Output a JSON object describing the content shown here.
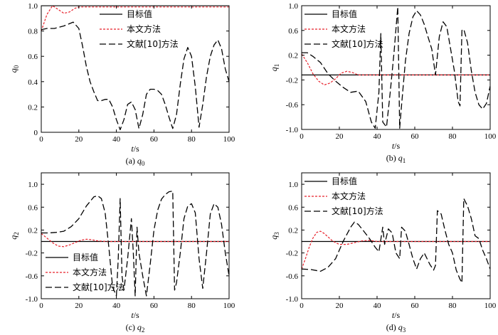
{
  "chart_data": [
    {
      "id": "q0",
      "type": "line",
      "caption_prefix": "(a) ",
      "caption_var": "q",
      "caption_sub": "0",
      "ylabel_var": "q",
      "ylabel_sub": "0",
      "xlabel_var": "t",
      "xlabel_unit": "/s",
      "xlim": [
        0,
        100
      ],
      "ylim": [
        0,
        1.0
      ],
      "xticks": [
        0,
        20,
        40,
        60,
        80,
        100
      ],
      "yticks": [
        0,
        0.2,
        0.4,
        0.6,
        0.8,
        1.0
      ],
      "ytick_labels": [
        "0",
        "0.2",
        "0.4",
        "0.6",
        "0.8",
        "1.0"
      ],
      "legend_position": "top-right",
      "legend_labels": [
        "目标值",
        "本文方法",
        "文献[10]方法"
      ],
      "series": [
        {
          "name": "目标值",
          "style": "solid",
          "color": "#000000",
          "x": [
            0,
            100
          ],
          "y": [
            1.0,
            1.0
          ]
        },
        {
          "name": "本文方法",
          "style": "dotted",
          "color": "#e8202a",
          "x": [
            0,
            3,
            6,
            9,
            12,
            15,
            18,
            20,
            25,
            30,
            100
          ],
          "y": [
            0.8,
            0.93,
            1.0,
            0.97,
            0.94,
            0.95,
            0.98,
            0.99,
            0.99,
            0.99,
            0.99
          ]
        },
        {
          "name": "文献[10]方法",
          "style": "dashed",
          "color": "#000000",
          "x": [
            0,
            3,
            7,
            12,
            17,
            20,
            22,
            24,
            26,
            28,
            30,
            32,
            34,
            36,
            38,
            40,
            42,
            44,
            46,
            48,
            50,
            52,
            54,
            56,
            58,
            60,
            62,
            64,
            66,
            68,
            70,
            72,
            74,
            76,
            78,
            80,
            82,
            84,
            86,
            88,
            90,
            92,
            94,
            96,
            98,
            100
          ],
          "y": [
            0.81,
            0.82,
            0.82,
            0.84,
            0.87,
            0.82,
            0.68,
            0.52,
            0.4,
            0.32,
            0.25,
            0.25,
            0.26,
            0.26,
            0.2,
            0.1,
            0.02,
            0.1,
            0.22,
            0.24,
            0.18,
            0.03,
            0.14,
            0.3,
            0.34,
            0.34,
            0.33,
            0.3,
            0.22,
            0.12,
            0.03,
            0.14,
            0.38,
            0.58,
            0.67,
            0.6,
            0.36,
            0.04,
            0.22,
            0.44,
            0.6,
            0.69,
            0.73,
            0.66,
            0.5,
            0.4
          ]
        }
      ]
    },
    {
      "id": "q1",
      "type": "line",
      "caption_prefix": "(b) ",
      "caption_var": "q",
      "caption_sub": "1",
      "ylabel_var": "q",
      "ylabel_sub": "1",
      "xlabel_var": "t",
      "xlabel_unit": "/s",
      "xlim": [
        0,
        100
      ],
      "ylim": [
        -1.0,
        1.0
      ],
      "xticks": [
        0,
        20,
        40,
        60,
        80,
        100
      ],
      "yticks": [
        -1.0,
        -0.6,
        -0.2,
        0.2,
        0.6,
        1.0
      ],
      "ytick_labels": [
        "-1.0",
        "-0.6",
        "-0.2",
        "0.2",
        "0.6",
        "1.0"
      ],
      "legend_position": "top-left",
      "legend_labels": [
        "目标值",
        "本文方法",
        "文献[10]方法"
      ],
      "series": [
        {
          "name": "目标值",
          "style": "solid",
          "color": "#000000",
          "x": [
            0,
            100
          ],
          "y": [
            -0.12,
            -0.12
          ]
        },
        {
          "name": "本文方法",
          "style": "dotted",
          "color": "#e8202a",
          "x": [
            0,
            3,
            6,
            9,
            12,
            15,
            18,
            21,
            24,
            27,
            30,
            35,
            40,
            100
          ],
          "y": [
            0.22,
            0.08,
            -0.1,
            -0.22,
            -0.28,
            -0.25,
            -0.18,
            -0.09,
            -0.06,
            -0.08,
            -0.12,
            -0.12,
            -0.12,
            -0.12
          ]
        },
        {
          "name": "文献[10]方法",
          "style": "dashed",
          "color": "#000000",
          "x": [
            0,
            3,
            6,
            10,
            14,
            18,
            22,
            26,
            30,
            34,
            37,
            39,
            41,
            42,
            43,
            45,
            47,
            49,
            51,
            52,
            53,
            55,
            57,
            59,
            61,
            63,
            65,
            67,
            69,
            71,
            73,
            75,
            77,
            79,
            81,
            83,
            84,
            85,
            86,
            88,
            90,
            92,
            94,
            96,
            98,
            100
          ],
          "y": [
            0.24,
            0.24,
            0.18,
            0.08,
            -0.1,
            -0.22,
            -0.32,
            -0.4,
            -0.38,
            -0.55,
            -0.88,
            -0.98,
            -0.4,
            0.55,
            -0.88,
            -0.96,
            -0.4,
            0.25,
            0.98,
            -0.98,
            -0.6,
            0.1,
            0.55,
            0.82,
            0.92,
            0.85,
            0.7,
            0.5,
            0.3,
            -0.12,
            0.5,
            0.74,
            0.66,
            0.3,
            -0.05,
            -0.55,
            -0.62,
            0.6,
            0.62,
            0.4,
            -0.05,
            -0.4,
            -0.6,
            -0.67,
            -0.58,
            -0.3
          ]
        }
      ]
    },
    {
      "id": "q2",
      "type": "line",
      "caption_prefix": "(c) ",
      "caption_var": "q",
      "caption_sub": "2",
      "ylabel_var": "q",
      "ylabel_sub": "2",
      "xlabel_var": "t",
      "xlabel_unit": "/s",
      "xlim": [
        0,
        100
      ],
      "ylim": [
        -1.0,
        1.2
      ],
      "xticks": [
        0,
        20,
        40,
        60,
        80,
        100
      ],
      "yticks": [
        -1.0,
        -0.6,
        -0.2,
        0.2,
        0.6,
        1.0
      ],
      "ytick_labels": [
        "-1.0",
        "-0.6",
        "-0.2",
        "0.2",
        "0.6",
        "1.0"
      ],
      "legend_position": "bottom-left",
      "legend_labels": [
        "目标值",
        "本文方法",
        "文献[10]方法"
      ],
      "series": [
        {
          "name": "目标值",
          "style": "solid",
          "color": "#000000",
          "x": [
            0,
            100
          ],
          "y": [
            0.0,
            0.0
          ]
        },
        {
          "name": "本文方法",
          "style": "dotted",
          "color": "#e8202a",
          "x": [
            0,
            3,
            6,
            9,
            12,
            15,
            18,
            21,
            24,
            27,
            30,
            35,
            100
          ],
          "y": [
            0.14,
            0.06,
            -0.02,
            -0.08,
            -0.09,
            -0.06,
            -0.02,
            0.02,
            0.04,
            0.03,
            0.01,
            0.0,
            0.0
          ]
        },
        {
          "name": "文献[10]方法",
          "style": "dashed",
          "color": "#000000",
          "x": [
            0,
            4,
            8,
            12,
            16,
            20,
            24,
            28,
            30,
            32,
            34,
            36,
            38,
            40,
            41,
            42,
            43,
            44,
            46,
            48,
            49,
            50,
            51,
            52,
            54,
            56,
            58,
            60,
            62,
            64,
            66,
            68,
            70,
            71,
            72,
            74,
            76,
            78,
            80,
            82,
            84,
            86,
            88,
            90,
            92,
            94,
            96,
            98,
            100
          ],
          "y": [
            0.15,
            0.15,
            0.16,
            0.18,
            0.26,
            0.4,
            0.62,
            0.78,
            0.8,
            0.75,
            0.5,
            -0.1,
            -0.8,
            -0.95,
            -0.3,
            0.75,
            -0.6,
            -0.85,
            -0.3,
            0.4,
            -0.2,
            -0.95,
            0.25,
            -0.2,
            -0.6,
            -0.95,
            -0.4,
            0.2,
            0.55,
            0.74,
            0.82,
            0.87,
            0.88,
            -0.85,
            -0.72,
            -0.2,
            0.4,
            0.62,
            0.66,
            0.5,
            -0.3,
            -0.82,
            -0.2,
            0.48,
            0.66,
            0.6,
            0.3,
            -0.2,
            -0.6
          ]
        }
      ]
    },
    {
      "id": "q3",
      "type": "line",
      "caption_prefix": "(d) ",
      "caption_var": "q",
      "caption_sub": "3",
      "ylabel_var": "q",
      "ylabel_sub": "3",
      "xlabel_var": "t",
      "xlabel_unit": "/s",
      "xlim": [
        0,
        100
      ],
      "ylim": [
        -1.0,
        1.2
      ],
      "xticks": [
        0,
        20,
        40,
        60,
        80,
        100
      ],
      "yticks": [
        -1.0,
        -0.6,
        -0.2,
        0.2,
        0.6,
        1.0
      ],
      "ytick_labels": [
        "-1.0",
        "-0.6",
        "-0.2",
        "0.2",
        "0.6",
        "1.0"
      ],
      "legend_position": "top-left",
      "legend_labels": [
        "目标值",
        "本文方法",
        "文献[10]方法"
      ],
      "series": [
        {
          "name": "目标值",
          "style": "solid",
          "color": "#000000",
          "x": [
            0,
            100
          ],
          "y": [
            0.0,
            0.0
          ]
        },
        {
          "name": "本文方法",
          "style": "dotted",
          "color": "#e8202a",
          "x": [
            0,
            2,
            4,
            6,
            8,
            10,
            12,
            14,
            16,
            18,
            20,
            24,
            28,
            32,
            36,
            40,
            100
          ],
          "y": [
            -0.48,
            -0.3,
            -0.1,
            0.06,
            0.16,
            0.18,
            0.14,
            0.08,
            0.02,
            -0.02,
            -0.05,
            -0.05,
            -0.02,
            0.01,
            0.02,
            0.0,
            0.0
          ]
        },
        {
          "name": "文献[10]方法",
          "style": "dashed",
          "color": "#000000",
          "x": [
            0,
            5,
            10,
            14,
            18,
            22,
            26,
            28,
            30,
            33,
            36,
            39,
            41,
            43,
            44,
            46,
            48,
            50,
            52,
            53,
            55,
            57,
            59,
            61,
            63,
            65,
            68,
            70,
            71,
            72,
            74,
            76,
            78,
            80,
            82,
            84,
            85,
            86,
            88,
            90,
            92,
            94,
            96,
            98,
            100
          ],
          "y": [
            -0.48,
            -0.49,
            -0.52,
            -0.45,
            -0.3,
            0.0,
            0.25,
            0.34,
            0.3,
            0.18,
            0.05,
            -0.1,
            -0.18,
            0.25,
            -0.05,
            0.22,
            0.15,
            -0.2,
            -0.3,
            0.25,
            0.18,
            -0.05,
            -0.3,
            -0.48,
            -0.3,
            -0.2,
            -0.4,
            -0.5,
            -0.42,
            0.54,
            0.48,
            0.2,
            -0.05,
            -0.2,
            -0.5,
            -0.66,
            -0.72,
            0.75,
            0.62,
            0.4,
            0.1,
            0.05,
            -0.15,
            -0.3,
            -0.48
          ]
        }
      ]
    }
  ]
}
